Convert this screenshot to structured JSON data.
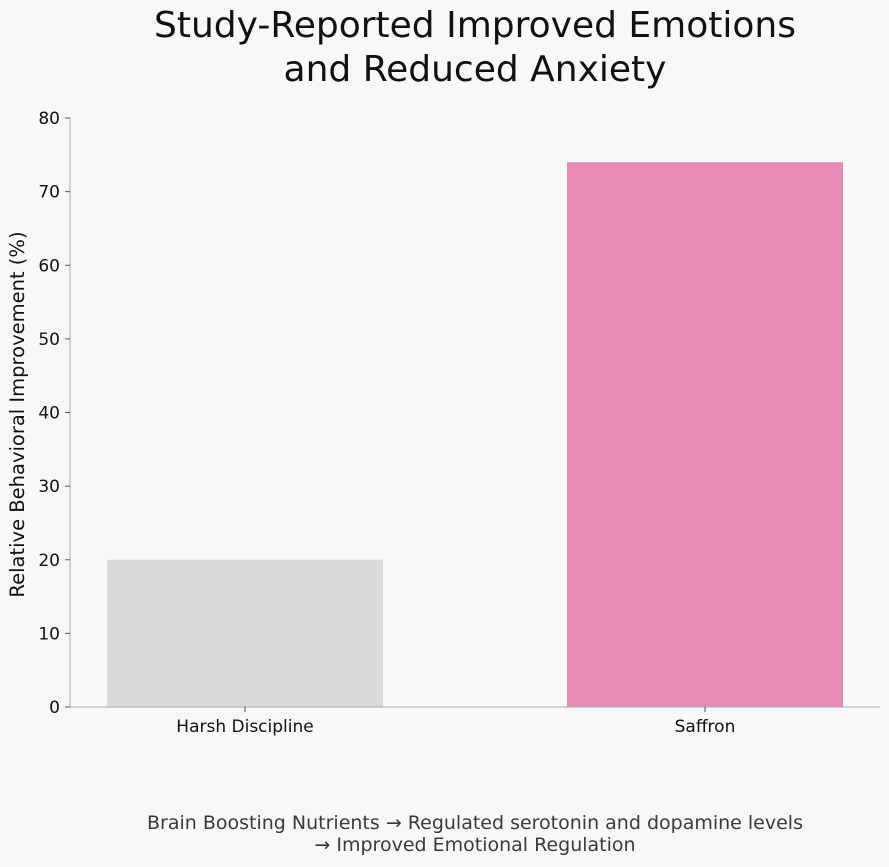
{
  "chart_data": {
    "type": "bar",
    "title_lines": [
      "Study-Reported Improved Emotions",
      "and Reduced Anxiety"
    ],
    "categories": [
      "Harsh Discipline",
      "Saffron"
    ],
    "values": [
      20,
      74
    ],
    "colors": [
      "#dadada",
      "#e88bb6"
    ],
    "xlabel": "",
    "ylabel": "Relative Behavioral Improvement (%)",
    "ylim": [
      0,
      80
    ],
    "yticks": [
      0,
      10,
      20,
      30,
      40,
      50,
      60,
      70,
      80
    ],
    "grid": false,
    "legend": "none"
  },
  "caption_lines": [
    "Brain Boosting Nutrients → Regulated serotonin and dopamine levels",
    "→ Improved Emotional Regulation"
  ]
}
